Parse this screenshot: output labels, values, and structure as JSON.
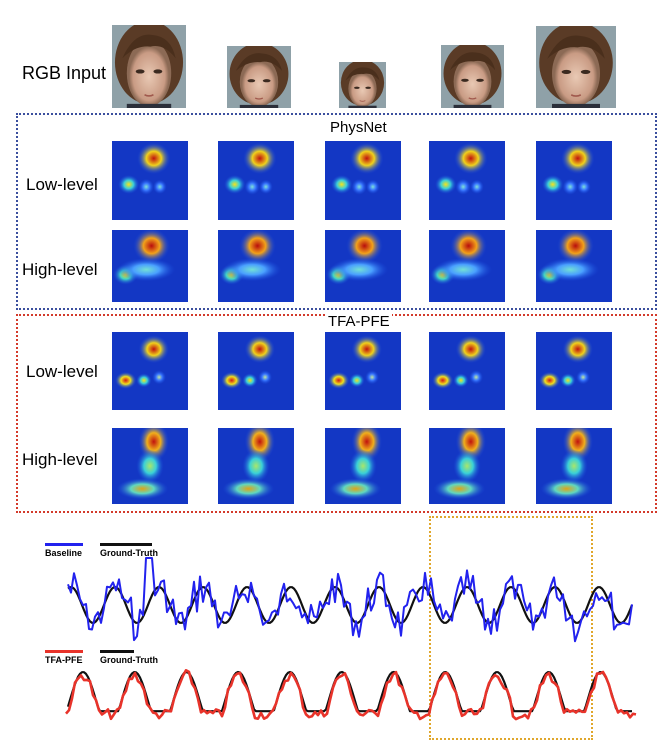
{
  "rows": {
    "rgb": "RGB Input",
    "low1": "Low-level",
    "high1": "High-level",
    "low2": "Low-level",
    "high2": "High-level"
  },
  "panels": {
    "physnet": "PhysNet",
    "tfapfe": "TFA-PFE"
  },
  "legend": {
    "baseline": "Baseline",
    "ground_truth_1": "Ground-Truth",
    "tfapfe": "TFA-PFE",
    "ground_truth_2": "Ground-Truth"
  },
  "colors": {
    "baseline": "#2222ee",
    "tfapfe": "#e8332a",
    "ground_truth": "#111111",
    "highlight_box": "#e0a72c",
    "physnet_border": "#3b4f9e",
    "tfapfe_border": "#d33a2b"
  }
}
